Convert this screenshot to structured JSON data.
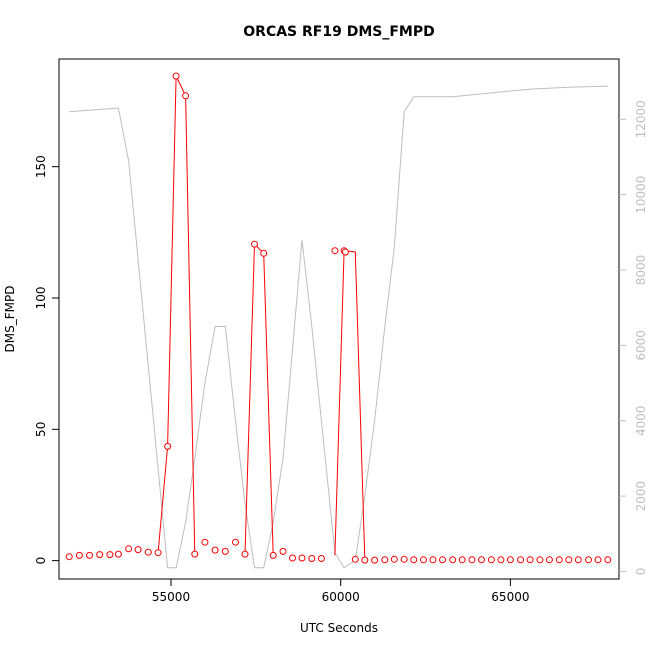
{
  "chart_data": {
    "type": "line",
    "title": "ORCAS RF19 DMS_FMPD",
    "xlabel": "UTC Seconds",
    "ylabel": "DMS_FMPD",
    "xlim": [
      51700,
      68200
    ],
    "ylim": [
      -7,
      191
    ],
    "y2lim": [
      -200,
      13600
    ],
    "x_ticks": [
      55000,
      60000,
      65000
    ],
    "x_tick_labels": [
      "55000",
      "60000",
      "65000"
    ],
    "y_ticks": [
      0,
      50,
      100,
      150
    ],
    "y_tick_labels": [
      "0",
      "50",
      "100",
      "150"
    ],
    "y2_ticks": [
      0,
      2000,
      4000,
      6000,
      8000,
      10000,
      12000
    ],
    "y2_tick_labels": [
      "0",
      "2000",
      "4000",
      "6000",
      "8000",
      "10000",
      "12000"
    ],
    "grid": false,
    "series": [
      {
        "axis": "left",
        "color": "#ff0000",
        "style": "line+points",
        "segments": [
          {
            "x": [
              54620,
              54900,
              55150,
              55430,
              55700
            ],
            "y": [
              3,
              43.5,
              184.5,
              177,
              2.5
            ]
          },
          {
            "x": [
              57180,
              57460,
              57730,
              58010
            ],
            "y": [
              2.5,
              120.5,
              117,
              2
            ]
          },
          {
            "x": [
              59830,
              60100,
              60140,
              60430,
              60710
            ],
            "y": [
              2,
              118,
              118,
              117.5,
              0.5
            ]
          }
        ],
        "points": {
          "x": [
            52000,
            52300,
            52600,
            52900,
            53200,
            53450,
            53750,
            54030,
            54330,
            54620,
            54900,
            55150,
            55430,
            55700,
            56000,
            56300,
            56600,
            56900,
            57180,
            57460,
            57730,
            58010,
            58300,
            58580,
            58860,
            59150,
            59430,
            59830,
            60100,
            60140,
            60430,
            60710,
            61000,
            61300,
            61580,
            61870,
            62150,
            62440,
            62720,
            63000,
            63300,
            63580,
            63870,
            64150,
            64440,
            64720,
            65000,
            65300,
            65580,
            65870,
            66150,
            66440,
            66720,
            67000,
            67300,
            67580,
            67870
          ],
          "y": [
            1.5,
            2,
            2,
            2.3,
            2.3,
            2.5,
            4.5,
            4.2,
            3.2,
            3,
            43.5,
            184.5,
            177,
            2.5,
            7,
            4,
            3.5,
            7,
            2.5,
            120.5,
            117,
            2,
            3.5,
            1,
            1,
            0.8,
            0.8,
            118,
            118,
            117.5,
            0.5,
            0.2,
            0.2,
            0.3,
            0.5,
            0.5,
            0.3,
            0.3,
            0.3,
            0.3,
            0.3,
            0.3,
            0.3,
            0.3,
            0.3,
            0.3,
            0.3,
            0.3,
            0.3,
            0.3,
            0.3,
            0.3,
            0.3,
            0.3,
            0.3,
            0.3,
            0.3
          ]
        }
      },
      {
        "axis": "right",
        "color": "#bebebe",
        "style": "line",
        "x": [
          52000,
          53450,
          53750,
          54900,
          55150,
          55430,
          55700,
          56000,
          56300,
          56600,
          56900,
          57180,
          57460,
          57730,
          58010,
          58300,
          58860,
          59150,
          59430,
          59830,
          60100,
          60430,
          60710,
          61000,
          61300,
          61580,
          61870,
          62150,
          63300,
          64440,
          65580,
          66720,
          67870
        ],
        "y": [
          12200,
          12300,
          10900,
          100,
          100,
          1300,
          3000,
          5000,
          6500,
          6500,
          4000,
          1800,
          100,
          100,
          1300,
          3000,
          8800,
          6500,
          4000,
          500,
          100,
          300,
          2000,
          4000,
          6500,
          8600,
          12200,
          12600,
          12600,
          12700,
          12800,
          12850,
          12880
        ]
      }
    ]
  }
}
